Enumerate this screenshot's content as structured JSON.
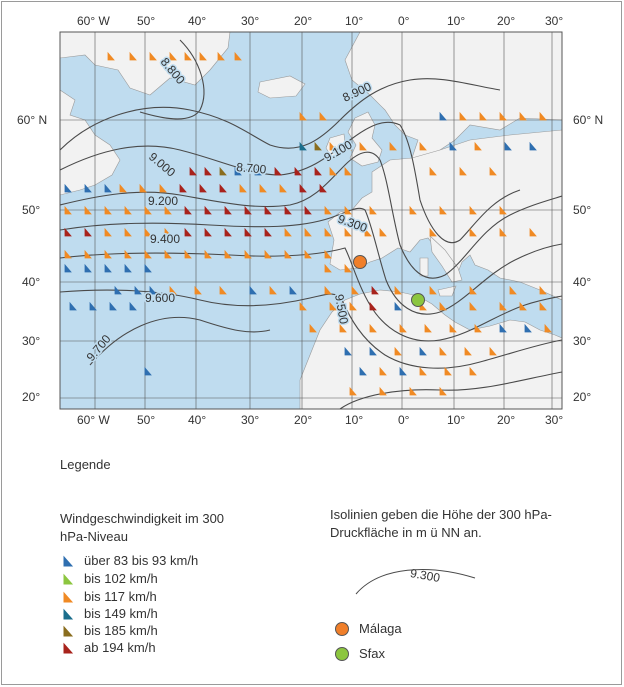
{
  "map": {
    "lon_labels": [
      "60° W",
      "50°",
      "40°",
      "30°",
      "20°",
      "10°",
      "0°",
      "10°",
      "20°",
      "30°"
    ],
    "lat_labels": [
      "60° N",
      "50°",
      "40°",
      "30°",
      "20°"
    ],
    "isolines": [
      "8.700",
      "8.800",
      "8.900",
      "9.000",
      "9.100",
      "9.200",
      "9.300",
      "9.400",
      "9.500",
      "9.600",
      "9.700"
    ],
    "colors": {
      "sea": "#bfdcef",
      "land": "#f2f2f2",
      "grid": "#555555",
      "isoline": "#4a4a4a"
    }
  },
  "legend": {
    "title": "Legende",
    "wind_heading": "Windgeschwindigkeit im 300 hPa-Niveau",
    "items": [
      {
        "label": "über 83 bis 93 km/h",
        "color": "#2f6fb0"
      },
      {
        "label": "bis 102 km/h",
        "color": "#8cc63f"
      },
      {
        "label": "bis 117 km/h",
        "color": "#f08a24"
      },
      {
        "label": "bis 149 km/h",
        "color": "#1b6e8c"
      },
      {
        "label": "bis 185 km/h",
        "color": "#8a6d1e"
      },
      {
        "label": "ab 194 km/h",
        "color": "#a8231c"
      }
    ],
    "isoline_note": "Isolinien geben die Höhe der 300 hPa-Druckfläche in m ü NN an.",
    "isoline_example": "9.300",
    "locations": [
      {
        "label": "Málaga",
        "color": "#f07f2a"
      },
      {
        "label": "Sfax",
        "color": "#8cc63f"
      }
    ]
  }
}
